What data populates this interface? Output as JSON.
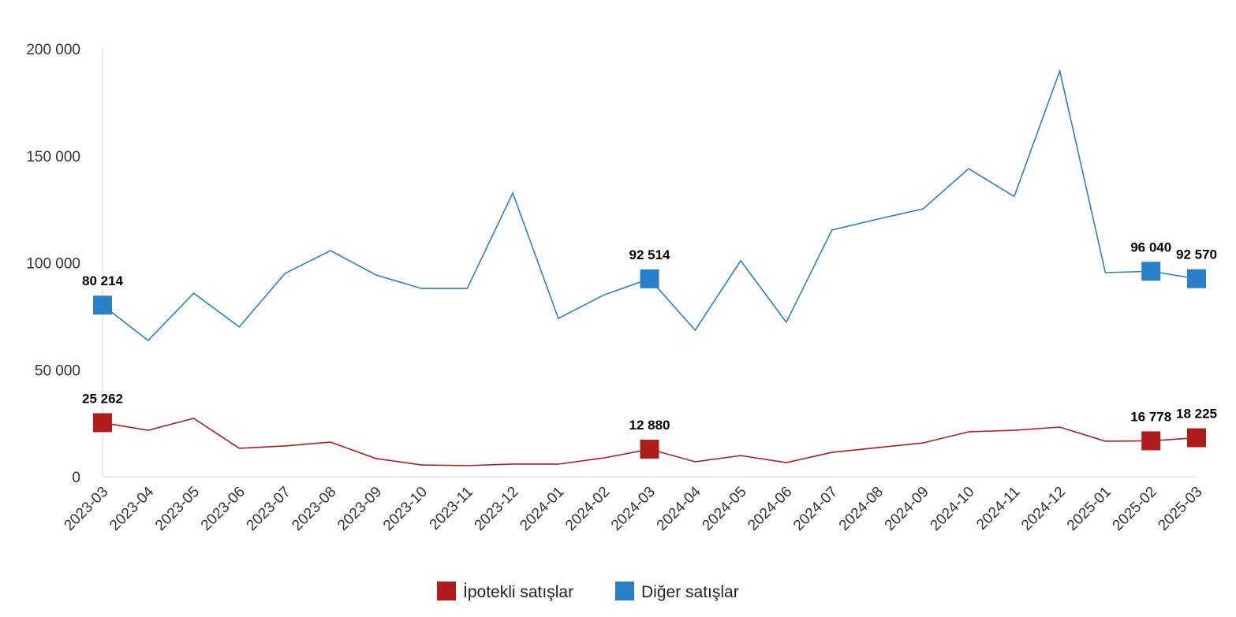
{
  "chart_data": {
    "type": "line",
    "title": "",
    "xlabel": "",
    "ylabel": "",
    "ylim": [
      0,
      200000
    ],
    "yticks": [
      0,
      50000,
      100000,
      150000,
      200000
    ],
    "ytick_labels": [
      "0",
      "50 000",
      "100 000",
      "150 000",
      "200 000"
    ],
    "grid": false,
    "legend_position": "bottom",
    "categories": [
      "2023-03",
      "2023-04",
      "2023-05",
      "2023-06",
      "2023-07",
      "2023-08",
      "2023-09",
      "2023-10",
      "2023-11",
      "2023-12",
      "2024-01",
      "2024-02",
      "2024-03",
      "2024-04",
      "2024-05",
      "2024-06",
      "2024-07",
      "2024-08",
      "2024-09",
      "2024-10",
      "2024-11",
      "2024-12",
      "2025-01",
      "2025-02",
      "2025-03"
    ],
    "series": [
      {
        "name": "İpotekli satışlar",
        "color": "#b01c1c",
        "values": [
          25262,
          21700,
          27300,
          13300,
          14400,
          16200,
          8500,
          5500,
          5200,
          5900,
          5900,
          8800,
          12880,
          7000,
          9900,
          6600,
          11400,
          13600,
          15800,
          21000,
          21700,
          23200,
          16600,
          16778,
          18225
        ],
        "labeled_points": [
          {
            "category": "2023-03",
            "label": "25 262"
          },
          {
            "category": "2024-03",
            "label": "12 880"
          },
          {
            "category": "2025-02",
            "label": "16 778"
          },
          {
            "category": "2025-03",
            "label": "18 225"
          }
        ]
      },
      {
        "name": "Diğer satışlar",
        "color": "#2a80c8",
        "values": [
          80214,
          63700,
          85800,
          70000,
          95000,
          105700,
          94300,
          88000,
          88000,
          132600,
          74000,
          85000,
          92514,
          68500,
          101000,
          72200,
          115300,
          120400,
          125200,
          144000,
          131000,
          189700,
          95400,
          96040,
          92570
        ],
        "labeled_points": [
          {
            "category": "2023-03",
            "label": "80 214"
          },
          {
            "category": "2024-03",
            "label": "92 514"
          },
          {
            "category": "2025-02",
            "label": "96 040"
          },
          {
            "category": "2025-03",
            "label": "92 570"
          }
        ]
      }
    ]
  }
}
